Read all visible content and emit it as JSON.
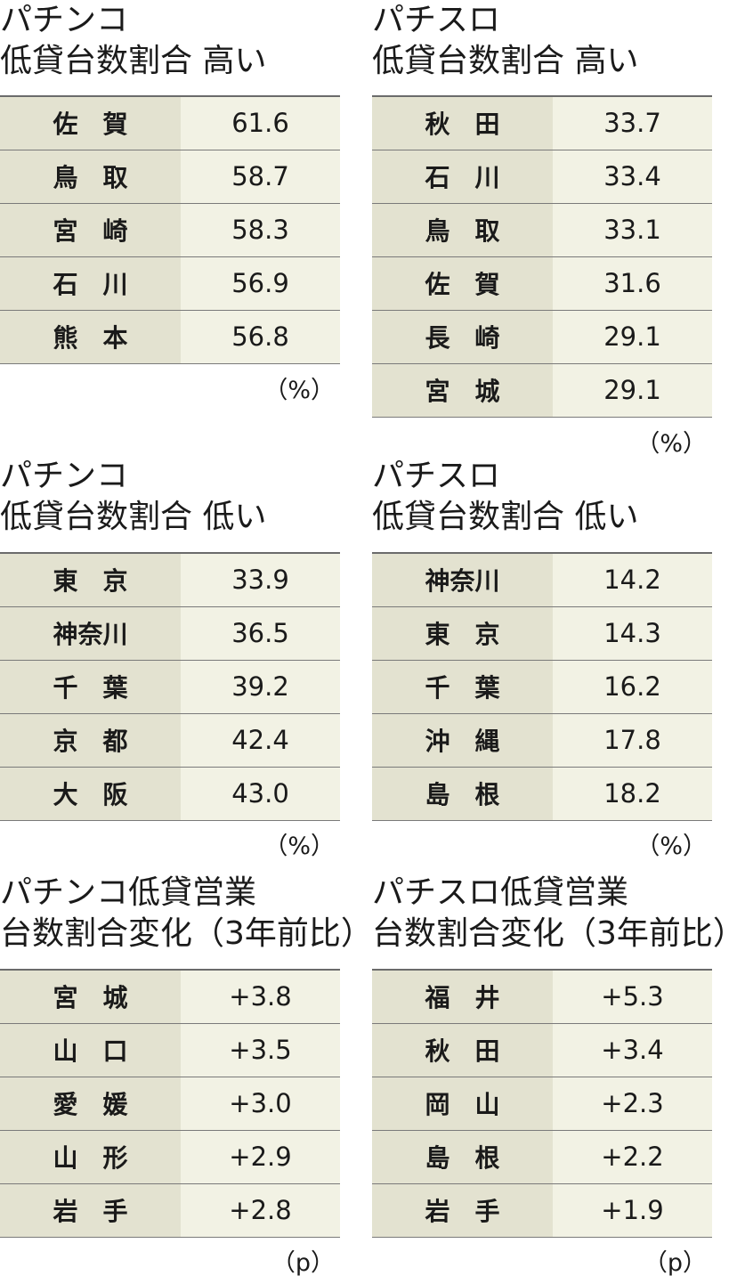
{
  "chart_data": [
    {
      "type": "table",
      "title_line1": "パチンコ",
      "title_line2": "低貸台数割合 高い",
      "unit": "（%）",
      "rows": [
        {
          "name": "佐　賀",
          "value": "61.6"
        },
        {
          "name": "鳥　取",
          "value": "58.7"
        },
        {
          "name": "宮　崎",
          "value": "58.3"
        },
        {
          "name": "石　川",
          "value": "56.9"
        },
        {
          "name": "熊　本",
          "value": "56.8"
        }
      ]
    },
    {
      "type": "table",
      "title_line1": "パチスロ",
      "title_line2": "低貸台数割合 高い",
      "unit": "（%）",
      "rows": [
        {
          "name": "秋　田",
          "value": "33.7"
        },
        {
          "name": "石　川",
          "value": "33.4"
        },
        {
          "name": "鳥　取",
          "value": "33.1"
        },
        {
          "name": "佐　賀",
          "value": "31.6"
        },
        {
          "name": "長　崎",
          "value": "29.1"
        },
        {
          "name": "宮　城",
          "value": "29.1"
        }
      ]
    },
    {
      "type": "table",
      "title_line1": "パチンコ",
      "title_line2": "低貸台数割合 低い",
      "unit": "（%）",
      "rows": [
        {
          "name": "東　京",
          "value": "33.9"
        },
        {
          "name": "神奈川",
          "value": "36.5"
        },
        {
          "name": "千　葉",
          "value": "39.2"
        },
        {
          "name": "京　都",
          "value": "42.4"
        },
        {
          "name": "大　阪",
          "value": "43.0"
        }
      ]
    },
    {
      "type": "table",
      "title_line1": "パチスロ",
      "title_line2": "低貸台数割合 低い",
      "unit": "（%）",
      "rows": [
        {
          "name": "神奈川",
          "value": "14.2"
        },
        {
          "name": "東　京",
          "value": "14.3"
        },
        {
          "name": "千　葉",
          "value": "16.2"
        },
        {
          "name": "沖　縄",
          "value": "17.8"
        },
        {
          "name": "島　根",
          "value": "18.2"
        }
      ]
    },
    {
      "type": "table",
      "title_line1": "パチンコ低貸営業",
      "title_line2": "台数割合変化（3年前比）",
      "unit": "（p）",
      "rows": [
        {
          "name": "宮　城",
          "value": "+3.8"
        },
        {
          "name": "山　口",
          "value": "+3.5"
        },
        {
          "name": "愛　媛",
          "value": "+3.0"
        },
        {
          "name": "山　形",
          "value": "+2.9"
        },
        {
          "name": "岩　手",
          "value": "+2.8"
        }
      ]
    },
    {
      "type": "table",
      "title_line1": "パチスロ低貸営業",
      "title_line2": "台数割合変化（3年前比）",
      "unit": "（p）",
      "rows": [
        {
          "name": "福　井",
          "value": "+5.3"
        },
        {
          "name": "秋　田",
          "value": "+3.4"
        },
        {
          "name": "岡　山",
          "value": "+2.3"
        },
        {
          "name": "島　根",
          "value": "+2.2"
        },
        {
          "name": "岩　手",
          "value": "+1.9"
        }
      ]
    }
  ]
}
